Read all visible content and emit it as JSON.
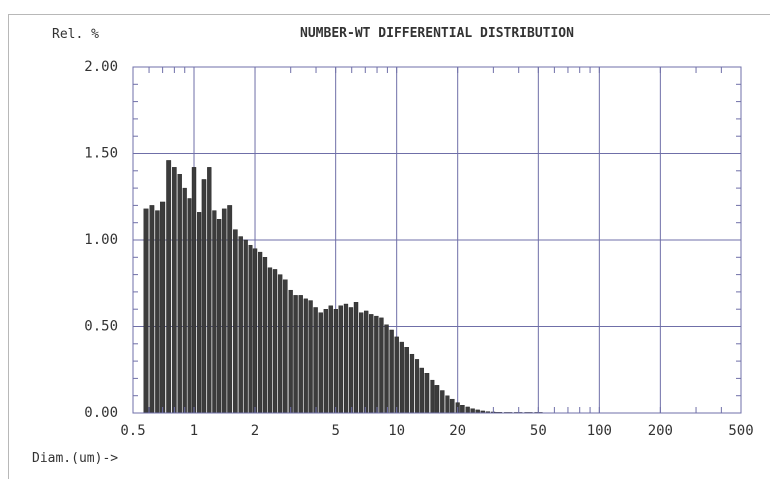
{
  "chart_data": {
    "type": "bar",
    "title": "NUMBER-WT DIFFERENTIAL DISTRIBUTION",
    "ylabel": "Rel. %",
    "xlabel": "Diam.(um)->",
    "x_scale": "log",
    "xlim": [
      0.5,
      500
    ],
    "ylim": [
      0,
      2.0
    ],
    "grid": true,
    "y_ticks": [
      0.0,
      0.5,
      1.0,
      1.5,
      2.0
    ],
    "y_tick_labels": [
      "0.00",
      "0.50",
      "1.00",
      "1.50",
      "2.00"
    ],
    "x_ticks": [
      0.5,
      1,
      2,
      5,
      10,
      20,
      50,
      100,
      200,
      500
    ],
    "x_tick_labels": [
      "0.5",
      "1",
      "2",
      "5",
      "10",
      "20",
      "50",
      "100",
      "200",
      "500"
    ],
    "color": "#3c3c3c",
    "series": [
      {
        "x": [
          0.58,
          0.62,
          0.66,
          0.7,
          0.75,
          0.8,
          0.85,
          0.9,
          0.95,
          1.0,
          1.06,
          1.12,
          1.19,
          1.26,
          1.33,
          1.41,
          1.5,
          1.6,
          1.7,
          1.8,
          1.9,
          2.0,
          2.12,
          2.24,
          2.37,
          2.51,
          2.66,
          2.82,
          3.0,
          3.17,
          3.36,
          3.56,
          3.76,
          3.98,
          4.22,
          4.47,
          4.73,
          5.01,
          5.3,
          5.62,
          5.95,
          6.3,
          6.68,
          7.07,
          7.49,
          7.94,
          8.41,
          8.91,
          9.44,
          10.0,
          10.6,
          11.2,
          11.9,
          12.6,
          13.3,
          14.1,
          15.0,
          15.8,
          16.8,
          17.8,
          18.8,
          20.0,
          21.1,
          22.4,
          23.7,
          25.1,
          26.6,
          28.2,
          29.9,
          31.6,
          35.5,
          39.8,
          44.7,
          50.1
        ],
        "values": [
          1.18,
          1.2,
          1.17,
          1.22,
          1.46,
          1.42,
          1.38,
          1.3,
          1.24,
          1.42,
          1.16,
          1.35,
          1.42,
          1.17,
          1.12,
          1.18,
          1.2,
          1.06,
          1.02,
          1.0,
          0.97,
          0.95,
          0.93,
          0.9,
          0.84,
          0.83,
          0.8,
          0.77,
          0.71,
          0.68,
          0.68,
          0.66,
          0.65,
          0.61,
          0.58,
          0.6,
          0.62,
          0.6,
          0.62,
          0.63,
          0.61,
          0.64,
          0.58,
          0.59,
          0.57,
          0.56,
          0.55,
          0.51,
          0.48,
          0.44,
          0.41,
          0.38,
          0.34,
          0.31,
          0.26,
          0.23,
          0.19,
          0.16,
          0.13,
          0.1,
          0.08,
          0.06,
          0.045,
          0.035,
          0.025,
          0.018,
          0.012,
          0.008,
          0.006,
          0.004,
          0.003,
          0.002,
          0.001,
          0.001
        ]
      }
    ]
  }
}
